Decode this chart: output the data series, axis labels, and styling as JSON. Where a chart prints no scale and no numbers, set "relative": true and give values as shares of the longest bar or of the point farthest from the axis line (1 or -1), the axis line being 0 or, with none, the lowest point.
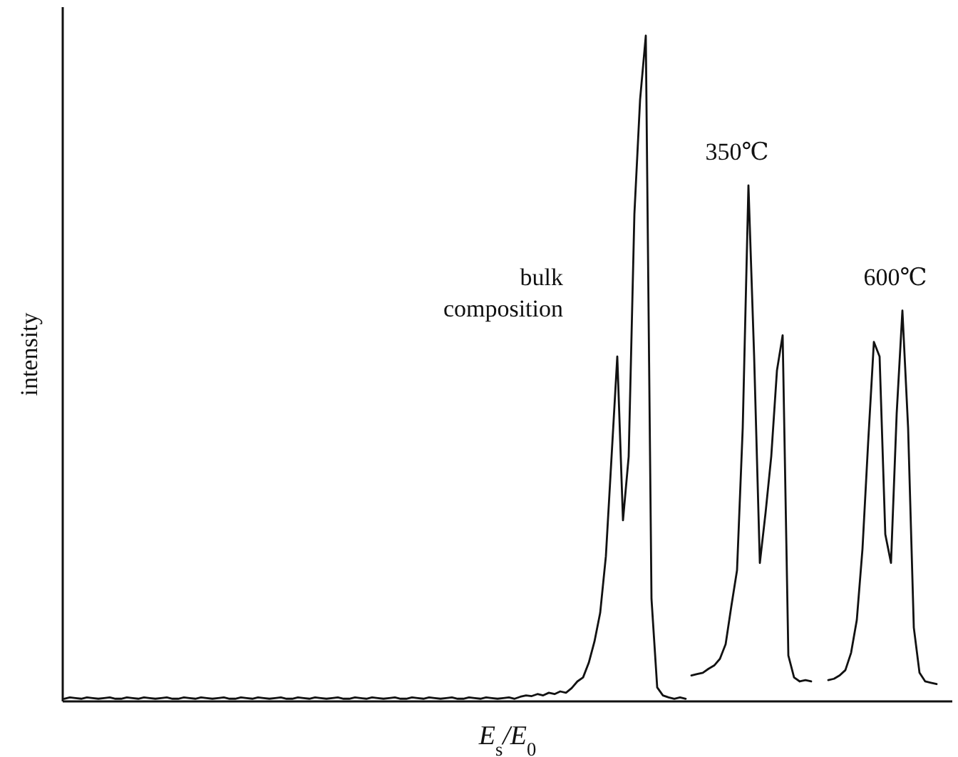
{
  "chart_data": {
    "type": "line",
    "relative": true,
    "xlabel": "E$_{s}$/E$_{0}$",
    "ylabel": "intensity",
    "marker": "none",
    "line_style": "solid",
    "categories": [
      null,
      null,
      null,
      null,
      null,
      null,
      null,
      null,
      null,
      null,
      null,
      null,
      null,
      null,
      null,
      null,
      null,
      null,
      null,
      null,
      null,
      null,
      null,
      null,
      null,
      null,
      null,
      null,
      null,
      null,
      null,
      null,
      null,
      null,
      null,
      null,
      null,
      null,
      null,
      null,
      null,
      null,
      null,
      null,
      null,
      null,
      null,
      null,
      null,
      null,
      null,
      null,
      null,
      null,
      null,
      null,
      null,
      null,
      null,
      null,
      null,
      null,
      null,
      null,
      null,
      null,
      null,
      null,
      null,
      null,
      null,
      null,
      null,
      null,
      null,
      null,
      null,
      null,
      null,
      null,
      null,
      null,
      null,
      null,
      null,
      null,
      null,
      null,
      null,
      null,
      null,
      null,
      null,
      null,
      null,
      null,
      null,
      null,
      null,
      null,
      null,
      null,
      null,
      null,
      null,
      null,
      null,
      null,
      null,
      null,
      null,
      null,
      null,
      null,
      null,
      null,
      null,
      null,
      null,
      null,
      null,
      null,
      null,
      null,
      null,
      null,
      null,
      null,
      null,
      null,
      null,
      null,
      null,
      null,
      null,
      null,
      null,
      null,
      null,
      null,
      null,
      null,
      null,
      null,
      null,
      null,
      null,
      null,
      null,
      null,
      null,
      null,
      null,
      null,
      null,
      null
    ],
    "series": [
      {
        "name": "bulk composition",
        "color": "#111111",
        "values": [
          0.004,
          0.006,
          0.005,
          0.004,
          0.006,
          0.005,
          0.004,
          0.005,
          0.006,
          0.004,
          0.004,
          0.006,
          0.005,
          0.004,
          0.006,
          0.005,
          0.004,
          0.005,
          0.006,
          0.004,
          0.004,
          0.006,
          0.005,
          0.004,
          0.006,
          0.005,
          0.004,
          0.005,
          0.006,
          0.004,
          0.004,
          0.006,
          0.005,
          0.004,
          0.006,
          0.005,
          0.004,
          0.005,
          0.006,
          0.004,
          0.004,
          0.006,
          0.005,
          0.004,
          0.006,
          0.005,
          0.004,
          0.005,
          0.006,
          0.004,
          0.004,
          0.006,
          0.005,
          0.004,
          0.006,
          0.005,
          0.004,
          0.005,
          0.006,
          0.004,
          0.004,
          0.006,
          0.005,
          0.004,
          0.006,
          0.005,
          0.004,
          0.005,
          0.006,
          0.004,
          0.004,
          0.006,
          0.005,
          0.004,
          0.006,
          0.005,
          0.004,
          0.005,
          0.006,
          0.004,
          0.007,
          0.009,
          0.008,
          0.011,
          0.009,
          0.013,
          0.011,
          0.015,
          0.013,
          0.02,
          0.03,
          0.036,
          0.058,
          0.09,
          0.133,
          0.218,
          0.368,
          0.518,
          0.272,
          0.368,
          0.732,
          0.904,
          1,
          0.154,
          0.021,
          0.009,
          0.006,
          0.004,
          0.006,
          0.004,
          null,
          null,
          null,
          null,
          null,
          null,
          null,
          null,
          null,
          null,
          null,
          null,
          null,
          null,
          null,
          null,
          null,
          null,
          null,
          null,
          null,
          null,
          null,
          null,
          null,
          null,
          null,
          null,
          null,
          null,
          null,
          null,
          null,
          null,
          null,
          null,
          null,
          null,
          null,
          null,
          null,
          null,
          null,
          null,
          null,
          null
        ]
      },
      {
        "name": "350℃",
        "color": "#111111",
        "values": [
          null,
          null,
          null,
          null,
          null,
          null,
          null,
          null,
          null,
          null,
          null,
          null,
          null,
          null,
          null,
          null,
          null,
          null,
          null,
          null,
          null,
          null,
          null,
          null,
          null,
          null,
          null,
          null,
          null,
          null,
          null,
          null,
          null,
          null,
          null,
          null,
          null,
          null,
          null,
          null,
          null,
          null,
          null,
          null,
          null,
          null,
          null,
          null,
          null,
          null,
          null,
          null,
          null,
          null,
          null,
          null,
          null,
          null,
          null,
          null,
          null,
          null,
          null,
          null,
          null,
          null,
          null,
          null,
          null,
          null,
          null,
          null,
          null,
          null,
          null,
          null,
          null,
          null,
          null,
          null,
          null,
          null,
          null,
          null,
          null,
          null,
          null,
          null,
          null,
          null,
          null,
          null,
          null,
          null,
          null,
          null,
          null,
          null,
          null,
          null,
          null,
          null,
          null,
          null,
          null,
          null,
          null,
          null,
          null,
          null,
          0.039,
          0.041,
          0.043,
          0.049,
          0.054,
          0.064,
          0.086,
          0.143,
          0.197,
          0.411,
          0.775,
          0.518,
          0.208,
          0.283,
          0.368,
          0.497,
          0.55,
          0.069,
          0.036,
          0.03,
          0.032,
          0.03,
          null,
          null,
          null,
          null,
          null,
          null,
          null,
          null,
          null,
          null,
          null,
          null,
          null,
          null,
          null,
          null,
          null,
          null,
          null,
          null,
          null,
          null,
          null,
          null
        ]
      },
      {
        "name": "600℃",
        "color": "#111111",
        "values": [
          null,
          null,
          null,
          null,
          null,
          null,
          null,
          null,
          null,
          null,
          null,
          null,
          null,
          null,
          null,
          null,
          null,
          null,
          null,
          null,
          null,
          null,
          null,
          null,
          null,
          null,
          null,
          null,
          null,
          null,
          null,
          null,
          null,
          null,
          null,
          null,
          null,
          null,
          null,
          null,
          null,
          null,
          null,
          null,
          null,
          null,
          null,
          null,
          null,
          null,
          null,
          null,
          null,
          null,
          null,
          null,
          null,
          null,
          null,
          null,
          null,
          null,
          null,
          null,
          null,
          null,
          null,
          null,
          null,
          null,
          null,
          null,
          null,
          null,
          null,
          null,
          null,
          null,
          null,
          null,
          null,
          null,
          null,
          null,
          null,
          null,
          null,
          null,
          null,
          null,
          null,
          null,
          null,
          null,
          null,
          null,
          null,
          null,
          null,
          null,
          null,
          null,
          null,
          null,
          null,
          null,
          null,
          null,
          null,
          null,
          null,
          null,
          null,
          null,
          null,
          null,
          null,
          null,
          null,
          null,
          null,
          null,
          null,
          null,
          null,
          null,
          null,
          null,
          null,
          null,
          null,
          null,
          null,
          null,
          0.032,
          0.034,
          0.039,
          0.047,
          0.073,
          0.122,
          0.229,
          0.39,
          0.54,
          0.518,
          0.251,
          0.208,
          0.433,
          0.587,
          0.411,
          0.111,
          0.043,
          0.03,
          0.028,
          0.026,
          null,
          null
        ]
      }
    ]
  }
}
